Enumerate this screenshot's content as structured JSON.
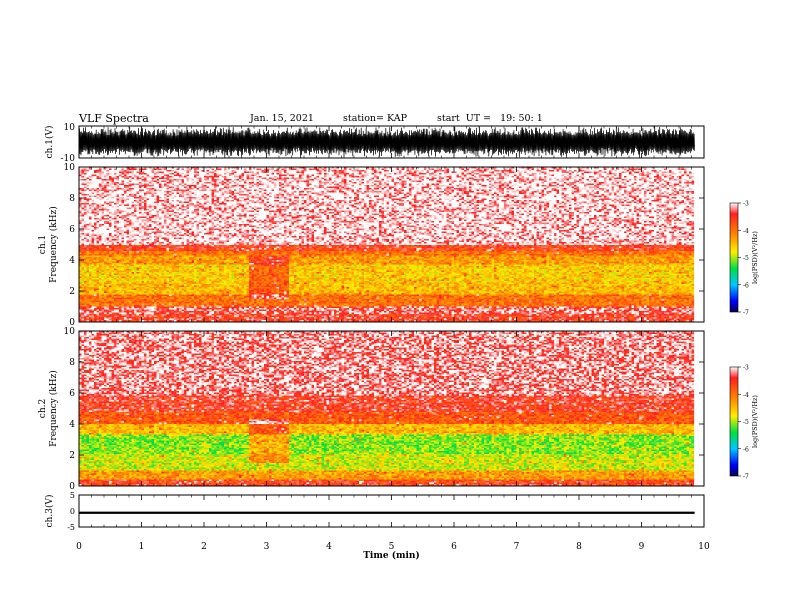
{
  "header": {
    "title": "VLF Spectra",
    "date": "Jan. 15, 2021",
    "station": "station= KAP",
    "start": "start  UT =   19: 50: 1"
  },
  "chart_data": [
    {
      "type": "line",
      "panel": "ch1-waveform",
      "ylabel": "ch.1(V)",
      "ylim": [
        -10,
        10
      ],
      "yticks": [
        "10",
        "-10"
      ],
      "xlim": [
        0,
        10
      ],
      "description_of_signal": "dense noise filling nearly full range"
    },
    {
      "type": "heatmap",
      "panel": "ch1-spectrogram",
      "ylabel_top": "ch.1",
      "ylabel": "Frequency  (kHz)",
      "ylim": [
        0,
        10
      ],
      "yticks": [
        "0",
        "2",
        "4",
        "6",
        "8",
        "10"
      ],
      "xlim": [
        0,
        10
      ],
      "data_end_min": 9.8,
      "bands": [
        {
          "from": 0,
          "to": 0.5,
          "level": -3.5
        },
        {
          "from": 0.5,
          "to": 1.0,
          "level": -3.3
        },
        {
          "from": 1.0,
          "to": 1.7,
          "level": -4.0
        },
        {
          "from": 1.7,
          "to": 2.5,
          "level": -4.5
        },
        {
          "from": 2.5,
          "to": 3.7,
          "level": -4.6
        },
        {
          "from": 3.7,
          "to": 4.3,
          "level": -4.3
        },
        {
          "from": 4.3,
          "to": 4.6,
          "level": -4.0
        },
        {
          "from": 4.6,
          "to": 5.0,
          "level": -3.6
        },
        {
          "from": 5.0,
          "to": 10.0,
          "level": -3.05
        }
      ],
      "event": {
        "t0": 2.7,
        "t1": 3.35,
        "note": "disturbed interval"
      },
      "colorbar": {
        "label": "log(PSD)(V²/Hz)",
        "ticks": [
          "-3",
          "-4",
          "-5",
          "-6",
          "-7"
        ],
        "min": -7,
        "max": -3
      }
    },
    {
      "type": "heatmap",
      "panel": "ch2-spectrogram",
      "ylabel_top": "ch.2",
      "ylabel": "Frequency  (kHz)",
      "ylim": [
        0,
        10
      ],
      "yticks": [
        "0",
        "2",
        "4",
        "6",
        "8",
        "10"
      ],
      "xlim": [
        0,
        10
      ],
      "data_end_min": 9.8,
      "bands": [
        {
          "from": 0,
          "to": 0.4,
          "level": -3.6
        },
        {
          "from": 0.4,
          "to": 1.0,
          "level": -4.3
        },
        {
          "from": 1.0,
          "to": 2.0,
          "level": -4.9
        },
        {
          "from": 2.0,
          "to": 3.3,
          "level": -5.1
        },
        {
          "from": 3.3,
          "to": 4.0,
          "level": -4.5
        },
        {
          "from": 4.0,
          "to": 4.8,
          "level": -3.8
        },
        {
          "from": 4.8,
          "to": 5.8,
          "level": -3.5
        },
        {
          "from": 5.8,
          "to": 10.0,
          "level": -3.2
        }
      ],
      "event": {
        "t0": 2.7,
        "t1": 3.35,
        "note": "disturbed interval"
      },
      "colorbar": {
        "label": "log(PSD)(V²/Hz)",
        "ticks": [
          "-3",
          "-4",
          "-5",
          "-6",
          "-7"
        ],
        "min": -7,
        "max": -3
      }
    },
    {
      "type": "line",
      "panel": "ch3-waveform",
      "ylabel": "ch.3(V)",
      "ylim": [
        -5,
        5
      ],
      "yticks": [
        "5",
        "0",
        "-5"
      ],
      "xlim": [
        0,
        10
      ],
      "xlabel": "Time  (min)",
      "xticks": [
        "0",
        "1",
        "2",
        "3",
        "4",
        "5",
        "6",
        "7",
        "8",
        "9",
        "10"
      ],
      "description_of_signal": "narrow band near -0.5 V"
    }
  ]
}
